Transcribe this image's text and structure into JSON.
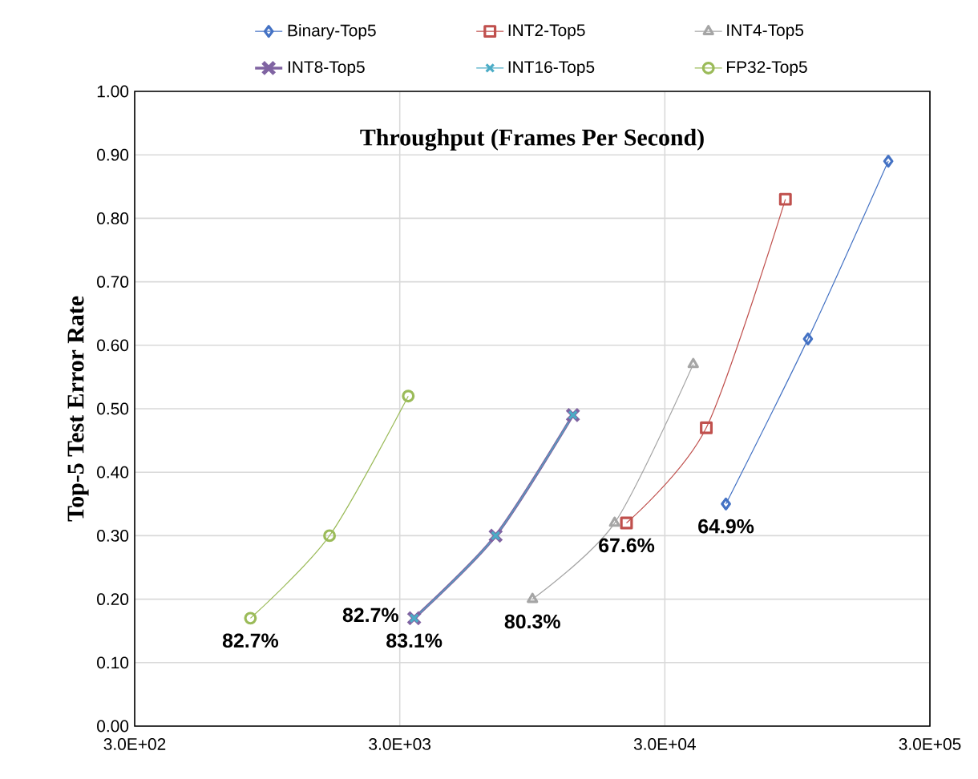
{
  "chart_data": {
    "type": "line",
    "title": "Throughput (Frames Per Second)",
    "ylabel": "Top-5 Test Error Rate",
    "log": "x",
    "grid": true,
    "legend": "top",
    "xlim": [
      300,
      300000
    ],
    "xticks": [
      {
        "value": 300,
        "label": "3.0E+02"
      },
      {
        "value": 3000,
        "label": "3.0E+03"
      },
      {
        "value": 30000,
        "label": "3.0E+04"
      },
      {
        "value": 300000,
        "label": "3.0E+05"
      }
    ],
    "ylim": [
      0,
      1
    ],
    "yticks": [
      {
        "value": 0,
        "label": "0.00"
      },
      {
        "value": 0.1,
        "label": "0.10"
      },
      {
        "value": 0.2,
        "label": "0.20"
      },
      {
        "value": 0.3,
        "label": "0.30"
      },
      {
        "value": 0.4,
        "label": "0.40"
      },
      {
        "value": 0.5,
        "label": "0.50"
      },
      {
        "value": 0.6,
        "label": "0.60"
      },
      {
        "value": 0.7,
        "label": "0.70"
      },
      {
        "value": 0.8,
        "label": "0.80"
      },
      {
        "value": 0.9,
        "label": "0.90"
      },
      {
        "value": 1,
        "label": "1.00"
      }
    ],
    "series": [
      {
        "name": "Binary-Top5",
        "color": "#4472c4",
        "marker": "diamond",
        "x": [
          51000,
          104000,
          209000
        ],
        "values": [
          0.35,
          0.61,
          0.89
        ]
      },
      {
        "name": "INT2-Top5",
        "color": "#c0504d",
        "marker": "square",
        "x": [
          21500,
          43000,
          85500
        ],
        "values": [
          0.32,
          0.47,
          0.83
        ]
      },
      {
        "name": "INT4-Top5",
        "color": "#a5a5a5",
        "marker": "triangle",
        "x": [
          9500,
          19400,
          38400
        ],
        "values": [
          0.2,
          0.32,
          0.57
        ]
      },
      {
        "name": "INT8-Top5",
        "color": "#8064a2",
        "marker": "cross",
        "x": [
          3400,
          6900,
          13500
        ],
        "values": [
          0.17,
          0.3,
          0.49
        ]
      },
      {
        "name": "INT16-Top5",
        "color": "#4bacc6",
        "marker": "cross",
        "x": [
          3400,
          6900,
          13500
        ],
        "values": [
          0.17,
          0.3,
          0.49
        ]
      },
      {
        "name": "FP32-Top5",
        "color": "#9bbb59",
        "marker": "circle",
        "x": [
          820,
          1630,
          3230
        ],
        "values": [
          0.17,
          0.3,
          0.52
        ]
      }
    ],
    "annotations": [
      {
        "text": "82.7%",
        "x": 820,
        "y": 0.17
      },
      {
        "text": "82.7%",
        "x": 3400,
        "y": 0.17
      },
      {
        "text": "83.1%",
        "x": 3400,
        "y": 0.17
      },
      {
        "text": "80.3%",
        "x": 9500,
        "y": 0.2
      },
      {
        "text": "67.6%",
        "x": 21500,
        "y": 0.32
      },
      {
        "text": "64.9%",
        "x": 51000,
        "y": 0.35
      }
    ]
  }
}
